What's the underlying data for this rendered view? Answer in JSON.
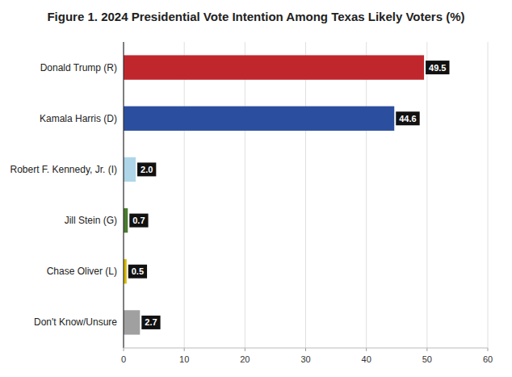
{
  "chart_data": {
    "type": "bar",
    "orientation": "horizontal",
    "title": "Figure 1. 2024 Presidential Vote Intention Among Texas Likely Voters (%)",
    "categories": [
      "Donald Trump (R)",
      "Kamala Harris (D)",
      "Robert F. Kennedy, Jr. (I)",
      "Jill Stein (G)",
      "Chase Oliver (L)",
      "Don't Know/Unsure"
    ],
    "values": [
      49.5,
      44.6,
      2.0,
      0.7,
      0.5,
      2.7
    ],
    "value_labels": [
      "49.5",
      "44.6",
      "2.0",
      "0.7",
      "0.5",
      "2.7"
    ],
    "colors": [
      "#c0272d",
      "#2b4f9e",
      "#aed6e8",
      "#4a7c2f",
      "#d4b800",
      "#a0a0a0"
    ],
    "xlim": [
      0,
      60
    ],
    "xticks": [
      0,
      10,
      20,
      30,
      40,
      50,
      60
    ],
    "grid": true,
    "data_labels": true
  }
}
